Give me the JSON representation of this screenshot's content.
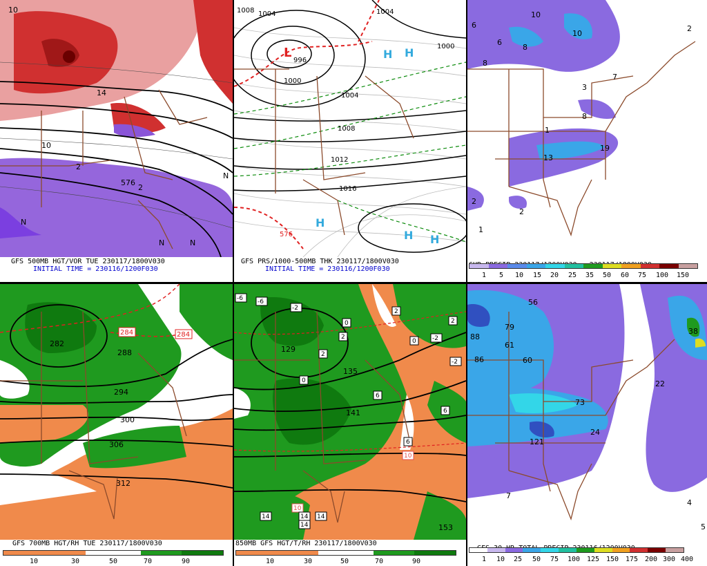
{
  "panels": {
    "p500": {
      "title": "GFS 500MB HGT/VOR TUE 230117/1800V030",
      "subtitle": "INITIAL TIME = 230116/1200F030",
      "contour_labels": [
        "576",
        "10",
        "14",
        "10",
        "N",
        "N",
        "N",
        "2",
        "2",
        "N"
      ]
    },
    "prs": {
      "title": "GFS PRS/1000-500MB THK 230117/1800V030",
      "subtitle": "INITIAL TIME = 230116/1200F030",
      "isobars": [
        "1008",
        "1004",
        "996",
        "1000",
        "1004",
        "1008",
        "1012",
        "1016",
        "1004",
        "1000"
      ],
      "thickness": [
        "576"
      ],
      "highs": [
        "H",
        "H",
        "H",
        "H",
        "H"
      ],
      "lows": [
        "L"
      ]
    },
    "precip6": {
      "title": "6HR PRECIP 230117/1200V030 - 230117/1800V030",
      "scale": [
        "1",
        "5",
        "10",
        "15",
        "20",
        "25",
        "35",
        "50",
        "60",
        "75",
        "100",
        "150"
      ],
      "amounts": [
        "10",
        "6",
        "10",
        "6",
        "8",
        "8",
        "7",
        "3",
        "1",
        "19",
        "2",
        "13",
        "2",
        "2",
        "1",
        "8"
      ]
    },
    "rh700": {
      "title": "GFS 700MB HGT/RH TUE 230117/1800V030",
      "scale": [
        "10",
        "30",
        "50",
        "70",
        "90"
      ],
      "contours": [
        "284",
        "284",
        "288",
        "294",
        "300",
        "306",
        "312",
        "282"
      ]
    },
    "t850": {
      "title": "850MB GFS HGT/T/RH 230117/1800V030",
      "scale": [
        "10",
        "30",
        "50",
        "70",
        "90"
      ],
      "temps": [
        "-6",
        "-6",
        "-2",
        "0",
        "2",
        "2",
        "0",
        "-2",
        "-2",
        "2",
        "0",
        "2",
        "6",
        "6",
        "6",
        "10",
        "10",
        "14",
        "14",
        "14",
        "14"
      ],
      "heights": [
        "129",
        "135",
        "141",
        "153"
      ]
    },
    "snow": {
      "title": "GFS 30 HR TOTAL PRECIP 230116/1200V030",
      "scale": [
        "1",
        "10",
        "25",
        "50",
        "75",
        "100",
        "125",
        "150",
        "175",
        "200",
        "300",
        "400"
      ],
      "amounts": [
        "56",
        "88",
        "79",
        "61",
        "86",
        "60",
        "22",
        "73",
        "121",
        "24",
        "7",
        "4",
        "5",
        "38"
      ]
    }
  },
  "colors": {
    "vort_pos": "#d03030",
    "vort_neg": "#8a55d8",
    "rh_green": "#1f9a1f",
    "rh_dry": "#f08a4b",
    "border": "#8b4a2b",
    "precip_light": "#8a6ae0",
    "precip_blue": "#3aa6e8",
    "precip_cyan": "#33d6e8"
  }
}
